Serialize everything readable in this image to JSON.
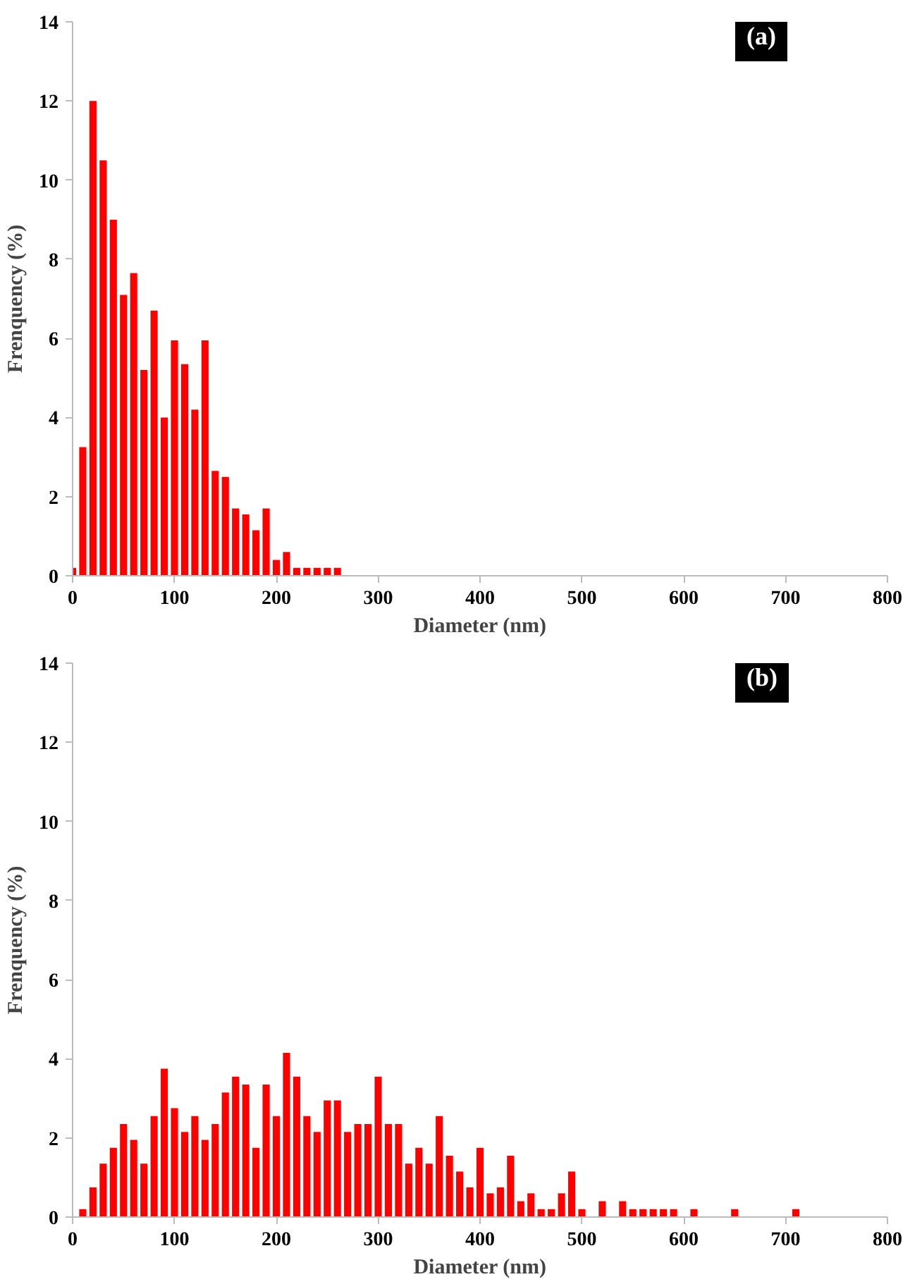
{
  "chart_data": [
    {
      "type": "histogram",
      "annotations": [
        "(a)"
      ],
      "xlabel": "Diameter (nm)",
      "ylabel": "Frenquency (%)",
      "color": "#ff0000",
      "bins": [
        -5,
        5,
        15,
        25,
        35,
        45,
        55,
        65,
        75,
        85,
        95,
        105,
        115,
        125,
        135,
        145,
        155,
        165,
        175,
        185,
        195,
        205,
        215,
        225,
        235,
        245,
        255,
        265
      ],
      "values": [
        0.2,
        3.25,
        12,
        10.5,
        9,
        7.1,
        7.65,
        5.2,
        6.7,
        4,
        5.95,
        5.35,
        4.2,
        5.95,
        2.65,
        2.5,
        1.7,
        1.55,
        1.15,
        1.7,
        0.4,
        0.6,
        0.2,
        0.2,
        0.2,
        0.2,
        0.2
      ],
      "xlim": [
        0,
        800
      ],
      "xticks": [
        0,
        100,
        200,
        300,
        400,
        500,
        600,
        700,
        800
      ],
      "ylim": [
        0,
        14
      ],
      "yticks": [
        0,
        2,
        4,
        6,
        8,
        10,
        12,
        14
      ],
      "grid": false
    },
    {
      "type": "histogram",
      "annotations": [
        "(b)"
      ],
      "xlabel": "Diameter (nm)",
      "ylabel": "Frenquency (%)",
      "color": "#ff0000",
      "bins": [
        5,
        15,
        25,
        35,
        45,
        55,
        65,
        75,
        85,
        95,
        105,
        115,
        125,
        135,
        145,
        155,
        165,
        175,
        185,
        195,
        205,
        215,
        225,
        235,
        245,
        255,
        265,
        275,
        285,
        295,
        305,
        315,
        325,
        335,
        345,
        355,
        365,
        375,
        385,
        395,
        405,
        415,
        425,
        435,
        445,
        455,
        465,
        475,
        485,
        495,
        505,
        515,
        525,
        535,
        545,
        555,
        565,
        575,
        585,
        595,
        605,
        615,
        625,
        635,
        645,
        655,
        665,
        675,
        685,
        695,
        705,
        715
      ],
      "values": [
        0.2,
        0.75,
        1.35,
        1.75,
        2.35,
        1.95,
        1.35,
        2.55,
        3.75,
        2.75,
        2.15,
        2.55,
        1.95,
        2.35,
        3.15,
        3.55,
        3.35,
        1.75,
        3.35,
        2.55,
        4.15,
        3.55,
        2.55,
        2.15,
        2.95,
        2.95,
        2.15,
        2.35,
        2.35,
        3.55,
        2.35,
        2.35,
        1.35,
        1.75,
        1.35,
        2.55,
        1.55,
        1.15,
        0.75,
        1.75,
        0.6,
        0.75,
        1.55,
        0.4,
        0.6,
        0.2,
        0.2,
        0.6,
        1.15,
        0.2,
        0,
        0.4,
        0,
        0.4,
        0.2,
        0.2,
        0.2,
        0.2,
        0.2,
        0,
        0.2,
        0,
        0,
        0,
        0.2,
        0,
        0,
        0,
        0,
        0,
        0.2
      ],
      "xlim": [
        0,
        800
      ],
      "xticks": [
        0,
        100,
        200,
        300,
        400,
        500,
        600,
        700,
        800
      ],
      "ylim": [
        0,
        14
      ],
      "yticks": [
        0,
        2,
        4,
        6,
        8,
        10,
        12,
        14
      ],
      "grid": false
    }
  ]
}
